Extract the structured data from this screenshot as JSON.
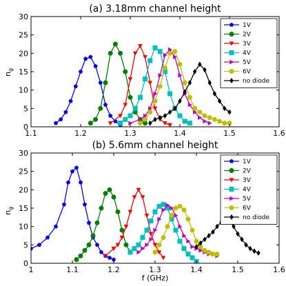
{
  "chart_data": [
    {
      "type": "line",
      "title": "(a) 3.18mm channel height",
      "xlabel": "",
      "ylabel": "n_g",
      "xlim": [
        1.1,
        1.6
      ],
      "ylim": [
        0,
        30
      ],
      "xticks": [
        1.1,
        1.2,
        1.3,
        1.4,
        1.5,
        1.6
      ],
      "yticks": [
        0,
        5,
        10,
        15,
        20,
        25,
        30
      ],
      "tick_labels_x": [
        "1.1",
        "1.2",
        "1.3",
        "1.4",
        "1.5",
        "1.6"
      ],
      "tick_labels_y": [
        "0",
        "5",
        "10",
        "15",
        "20",
        "25",
        "30"
      ],
      "grid": false,
      "legend_position": "top-right",
      "series": [
        {
          "name": "1V",
          "color": "#0000ff",
          "marker": "pentagon",
          "x": [
            1.15,
            1.16,
            1.17,
            1.18,
            1.19,
            1.2,
            1.21,
            1.22,
            1.23,
            1.24,
            1.25,
            1.26,
            1.27,
            1.28
          ],
          "y": [
            1,
            2,
            4,
            7,
            11,
            15,
            18.5,
            19,
            16.5,
            12,
            6,
            3,
            1.5,
            0.5
          ]
        },
        {
          "name": "2V",
          "color": "#008000",
          "marker": "circle",
          "x": [
            1.22,
            1.23,
            1.24,
            1.25,
            1.26,
            1.27,
            1.28,
            1.29,
            1.3,
            1.31,
            1.32,
            1.33
          ],
          "y": [
            1,
            2,
            5,
            12,
            20,
            22.5,
            20,
            15,
            8,
            4,
            2,
            1
          ]
        },
        {
          "name": "3V",
          "color": "#ff0000",
          "marker": "triangle-down",
          "x": [
            1.26,
            1.28,
            1.29,
            1.3,
            1.31,
            1.32,
            1.33,
            1.34,
            1.35,
            1.36,
            1.37,
            1.38
          ],
          "y": [
            1,
            3,
            6,
            13,
            20,
            22,
            19,
            12,
            5,
            2,
            1,
            0.5
          ]
        },
        {
          "name": "4V",
          "color": "#00bfbf",
          "marker": "square",
          "x": [
            1.28,
            1.29,
            1.3,
            1.31,
            1.32,
            1.33,
            1.34,
            1.35,
            1.36,
            1.37,
            1.38,
            1.39,
            1.4,
            1.41,
            1.42
          ],
          "y": [
            1,
            2,
            3,
            5,
            8,
            13,
            18,
            21.5,
            20.5,
            15,
            9,
            5,
            3,
            1.5,
            1
          ]
        },
        {
          "name": "5V",
          "color": "#bf00bf",
          "marker": "triangle-right",
          "x": [
            1.3,
            1.32,
            1.33,
            1.34,
            1.35,
            1.36,
            1.37,
            1.38,
            1.39,
            1.4,
            1.41,
            1.42,
            1.43,
            1.44,
            1.45,
            1.46
          ],
          "y": [
            1,
            2,
            3,
            5,
            9,
            14,
            19.5,
            21,
            19,
            14,
            9,
            6,
            4,
            2.5,
            1.5,
            1
          ]
        },
        {
          "name": "6V",
          "color": "#bfbf00",
          "marker": "circle",
          "x": [
            1.32,
            1.33,
            1.34,
            1.35,
            1.36,
            1.37,
            1.38,
            1.39,
            1.4,
            1.41,
            1.42,
            1.43,
            1.44,
            1.45,
            1.46,
            1.47,
            1.48,
            1.49,
            1.5
          ],
          "y": [
            1,
            2,
            4,
            7,
            11,
            16,
            20,
            20.5,
            17,
            12,
            8,
            5,
            4,
            3,
            2.5,
            2,
            1.5,
            1,
            1
          ]
        },
        {
          "name": "no diode",
          "color": "#000000",
          "marker": "diamond",
          "x": [
            1.34,
            1.35,
            1.36,
            1.37,
            1.38,
            1.39,
            1.4,
            1.41,
            1.42,
            1.43,
            1.44,
            1.45,
            1.46,
            1.47,
            1.48,
            1.49,
            1.5
          ],
          "y": [
            1,
            2,
            2.5,
            3,
            4,
            5,
            7,
            9.5,
            12,
            15,
            17,
            15.5,
            12,
            9,
            7,
            5,
            4
          ]
        }
      ]
    },
    {
      "type": "line",
      "title": "(b) 5.6mm channel height",
      "xlabel": "f (GHz)",
      "ylabel": "n_g",
      "xlim": [
        1.0,
        1.6
      ],
      "ylim": [
        0,
        30
      ],
      "xticks": [
        1.0,
        1.1,
        1.2,
        1.3,
        1.4,
        1.5,
        1.6
      ],
      "yticks": [
        0,
        5,
        10,
        15,
        20,
        25,
        30
      ],
      "tick_labels_x": [
        "1",
        "1.1",
        "1.2",
        "1.3",
        "1.4",
        "1.5",
        "1.6"
      ],
      "tick_labels_y": [
        "0",
        "5",
        "10",
        "15",
        "20",
        "25",
        "30"
      ],
      "grid": false,
      "legend_position": "top-right",
      "series": [
        {
          "name": "1V",
          "color": "#0000ff",
          "marker": "pentagon",
          "x": [
            1.0,
            1.02,
            1.04,
            1.06,
            1.08,
            1.09,
            1.1,
            1.11,
            1.12,
            1.13,
            1.14,
            1.15,
            1.16,
            1.17,
            1.18,
            1.19,
            1.2
          ],
          "y": [
            4,
            5,
            7,
            10,
            16,
            22,
            25,
            26,
            22,
            16,
            11,
            7,
            5,
            3,
            2,
            1.5,
            1
          ]
        },
        {
          "name": "2V",
          "color": "#008000",
          "marker": "circle",
          "x": [
            1.11,
            1.12,
            1.13,
            1.14,
            1.15,
            1.16,
            1.17,
            1.18,
            1.19,
            1.2,
            1.21,
            1.22,
            1.23,
            1.24
          ],
          "y": [
            1,
            2,
            3.5,
            5,
            7.5,
            11,
            15,
            19,
            20,
            18,
            14,
            9,
            5,
            3
          ]
        },
        {
          "name": "3V",
          "color": "#ff0000",
          "marker": "triangle-down",
          "x": [
            1.18,
            1.2,
            1.21,
            1.22,
            1.23,
            1.24,
            1.25,
            1.26,
            1.27,
            1.28,
            1.29,
            1.3,
            1.31,
            1.32
          ],
          "y": [
            2,
            4,
            5,
            7,
            10,
            14,
            18,
            20,
            18,
            13,
            8,
            5,
            3,
            1.5
          ]
        },
        {
          "name": "4V",
          "color": "#00bfbf",
          "marker": "square",
          "x": [
            1.24,
            1.25,
            1.26,
            1.27,
            1.28,
            1.29,
            1.3,
            1.31,
            1.32,
            1.33,
            1.34,
            1.35,
            1.36,
            1.37,
            1.38,
            1.39,
            1.4
          ],
          "y": [
            3,
            4,
            5,
            7,
            9,
            11.5,
            14,
            15.5,
            16,
            15,
            12,
            9,
            6,
            4,
            2.5,
            1.5,
            0.5
          ]
        },
        {
          "name": "5V",
          "color": "#bf00bf",
          "marker": "triangle-right",
          "x": [
            1.26,
            1.27,
            1.28,
            1.29,
            1.3,
            1.31,
            1.32,
            1.33,
            1.34,
            1.35,
            1.36,
            1.37,
            1.38,
            1.39,
            1.4,
            1.41,
            1.42,
            1.43,
            1.44,
            1.45
          ],
          "y": [
            3,
            4,
            5,
            6.5,
            9,
            12,
            14.5,
            15.8,
            15,
            13,
            10,
            7.5,
            6,
            4.5,
            4,
            3.5,
            3,
            2.5,
            2.5,
            2
          ]
        },
        {
          "name": "6V",
          "color": "#bfbf00",
          "marker": "circle",
          "x": [
            1.3,
            1.31,
            1.32,
            1.33,
            1.34,
            1.35,
            1.36,
            1.37,
            1.38,
            1.39,
            1.4,
            1.41,
            1.42,
            1.43,
            1.44,
            1.45
          ],
          "y": [
            3,
            5,
            7,
            10,
            13,
            15,
            15.5,
            14.5,
            12,
            9,
            6,
            4.5,
            3.5,
            3,
            2.5,
            2.5
          ]
        },
        {
          "name": "no diode",
          "color": "#000000",
          "marker": "diamond",
          "x": [
            1.4,
            1.41,
            1.42,
            1.43,
            1.44,
            1.45,
            1.46,
            1.47,
            1.48,
            1.49,
            1.5,
            1.51,
            1.52,
            1.53,
            1.54,
            1.55
          ],
          "y": [
            4.5,
            5.5,
            6.5,
            7.5,
            8.5,
            10,
            11.2,
            12,
            11.5,
            10,
            8,
            6.5,
            5,
            4,
            3.3,
            2.8
          ]
        }
      ]
    }
  ]
}
